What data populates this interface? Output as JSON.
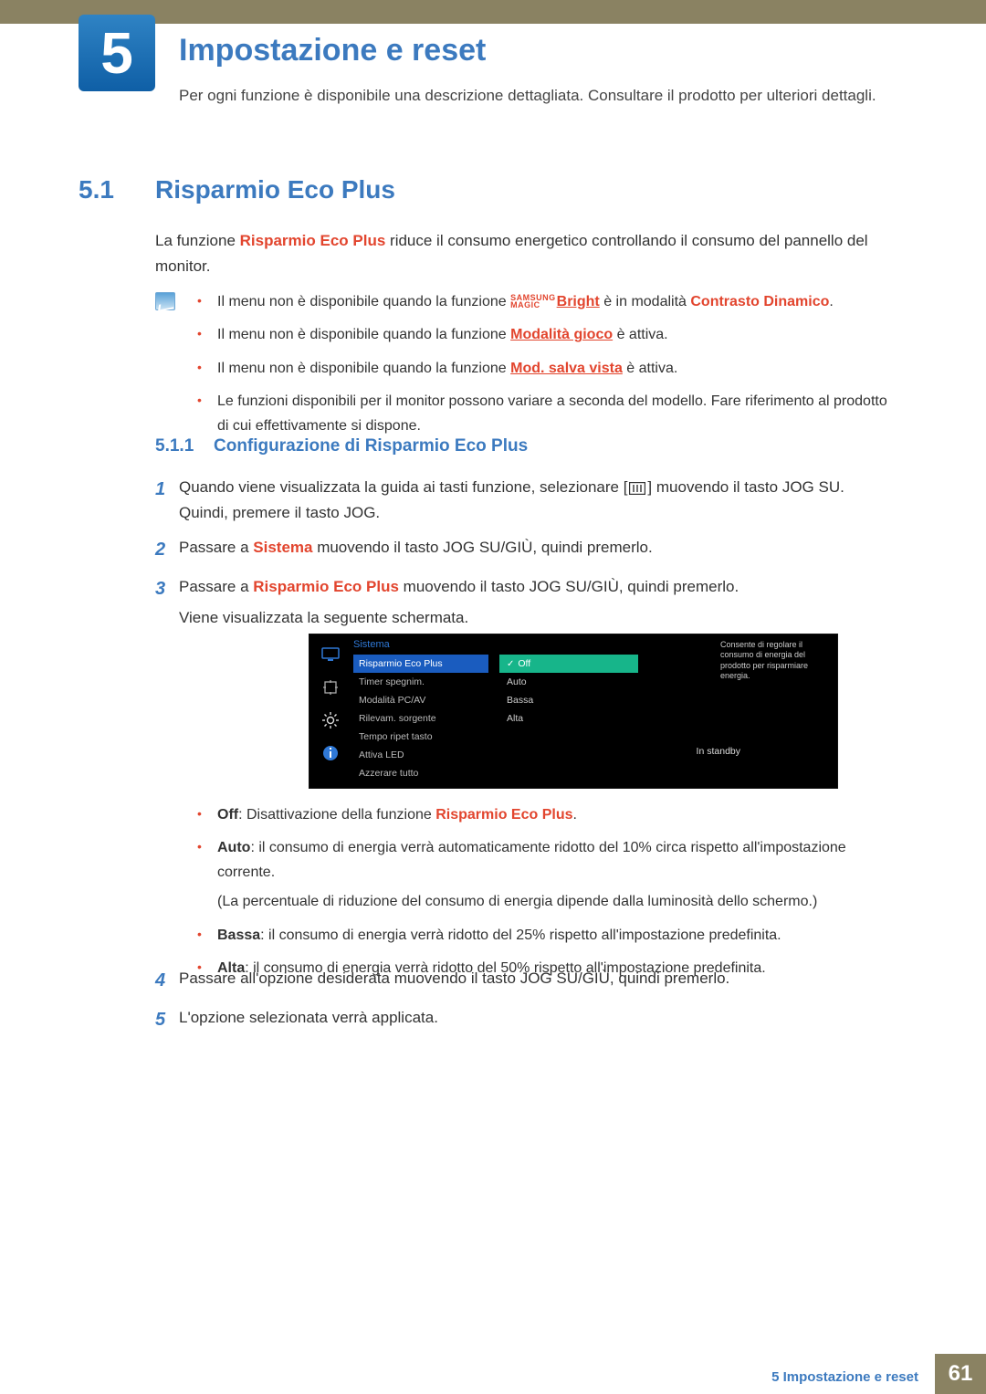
{
  "colors": {
    "accent": "#3c7abf",
    "emph": "#e2452e",
    "khaki": "#8a8262",
    "osd_sel": "#1a5cbf",
    "osd_on": "#17b58a"
  },
  "chapter": {
    "number": "5",
    "title": "Impostazione e reset",
    "desc": "Per ogni funzione è disponibile una descrizione dettagliata. Consultare il prodotto per ulteriori dettagli."
  },
  "section": {
    "num": "5.1",
    "title": "Risparmio Eco Plus",
    "body_pre": "La funzione ",
    "body_emph": "Risparmio Eco Plus",
    "body_post": " riduce il consumo energetico controllando il consumo del pannello del monitor."
  },
  "notes": {
    "n1a": "Il menu non è disponibile quando la funzione ",
    "magic_top": "SAMSUNG",
    "magic_bot": "MAGIC",
    "n1b": "Bright",
    "n1c": " è in modalità ",
    "n1d": "Contrasto Dinamico",
    "n1e": ".",
    "n2a": "Il menu non è disponibile quando la funzione ",
    "n2b": "Modalità gioco",
    "n2c": " è attiva.",
    "n3a": "Il menu non è disponibile quando la funzione ",
    "n3b": "Mod. salva vista",
    "n3c": " è attiva.",
    "n4": "Le funzioni disponibili per il monitor possono variare a seconda del modello. Fare riferimento al prodotto di cui effettivamente si dispone."
  },
  "subsection": {
    "num": "5.1.1",
    "title": "Configurazione di Risparmio Eco Plus"
  },
  "steps": {
    "s1a": "Quando viene visualizzata la guida ai tasti funzione, selezionare [",
    "s1b": "] muovendo il tasto JOG SU. Quindi, premere il tasto JOG.",
    "s2a": "Passare a ",
    "s2b": "Sistema",
    "s2c": " muovendo il tasto JOG SU/GIÙ, quindi premerlo.",
    "s3a": "Passare a ",
    "s3b": "Risparmio Eco Plus",
    "s3c": " muovendo il tasto JOG SU/GIÙ, quindi premerlo.",
    "s3d": "Viene visualizzata la seguente schermata.",
    "s4": "Passare all'opzione desiderata muovendo il tasto JOG SU/GIÙ, quindi premerlo.",
    "s5": "L'opzione selezionata verrà applicata."
  },
  "osd": {
    "header": "Sistema",
    "menu": [
      "Risparmio Eco Plus",
      "Timer spegnim.",
      "Modalità PC/AV",
      "Rilevam. sorgente",
      "Tempo ripet tasto",
      "Attiva LED",
      "Azzerare tutto"
    ],
    "menu_selected": 0,
    "options": [
      "Off",
      "Auto",
      "Bassa",
      "Alta"
    ],
    "option_selected": 0,
    "right_value": "In standby",
    "right_value_row": 5,
    "help": "Consente di regolare il consumo di energia del prodotto per risparmiare energia."
  },
  "options": {
    "o1a": "Off",
    "o1b": ": Disattivazione della funzione ",
    "o1c": "Risparmio Eco Plus",
    "o1d": ".",
    "o2a": "Auto",
    "o2b": ": il consumo di energia verrà automaticamente ridotto del 10% circa rispetto all'impostazione corrente.",
    "o2c": "(La percentuale di riduzione del consumo di energia dipende dalla luminosità dello schermo.)",
    "o3a": "Bassa",
    "o3b": ": il consumo di energia verrà ridotto del 25% rispetto all'impostazione predefinita.",
    "o4a": "Alta",
    "o4b": ": il consumo di energia verrà ridotto del 50% rispetto all'impostazione predefinita."
  },
  "footer": {
    "text": "5 Impostazione e reset",
    "page": "61"
  },
  "nums": {
    "n1": "1",
    "n2": "2",
    "n3": "3",
    "n4": "4",
    "n5": "5"
  }
}
